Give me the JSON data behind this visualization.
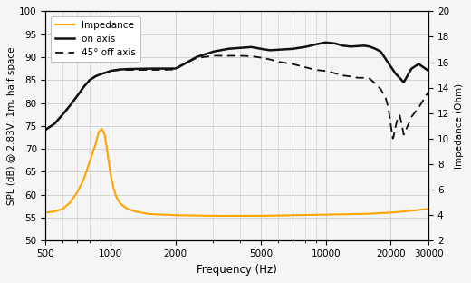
{
  "xlabel": "Frequency (Hz)",
  "ylabel_left": "SPL (dB) @ 2.83V, 1m, half space",
  "ylabel_right": "Impedance (Ohm)",
  "ylim_left": [
    50,
    100
  ],
  "ylim_right": [
    2,
    20
  ],
  "xlim": [
    500,
    30000
  ],
  "background_color": "#f5f5f5",
  "grid_color": "#cccccc",
  "on_axis_color": "#111111",
  "off_axis_color": "#111111",
  "impedance_color": "#FFA500",
  "legend_labels": [
    "Impedance",
    "on axis",
    "45° off axis"
  ],
  "on_axis_pts": [
    [
      500,
      74.2
    ],
    [
      550,
      75.5
    ],
    [
      600,
      77.5
    ],
    [
      650,
      79.5
    ],
    [
      700,
      81.5
    ],
    [
      750,
      83.5
    ],
    [
      800,
      85.0
    ],
    [
      850,
      85.8
    ],
    [
      900,
      86.3
    ],
    [
      950,
      86.6
    ],
    [
      1000,
      87.0
    ],
    [
      1100,
      87.3
    ],
    [
      1200,
      87.4
    ],
    [
      1500,
      87.5
    ],
    [
      1700,
      87.5
    ],
    [
      2000,
      87.5
    ],
    [
      2200,
      88.5
    ],
    [
      2500,
      90.0
    ],
    [
      3000,
      91.2
    ],
    [
      3500,
      91.8
    ],
    [
      4000,
      92.0
    ],
    [
      4500,
      92.2
    ],
    [
      5000,
      91.8
    ],
    [
      5500,
      91.5
    ],
    [
      6000,
      91.6
    ],
    [
      7000,
      91.8
    ],
    [
      8000,
      92.2
    ],
    [
      9000,
      92.8
    ],
    [
      10000,
      93.2
    ],
    [
      11000,
      93.0
    ],
    [
      12000,
      92.5
    ],
    [
      13000,
      92.3
    ],
    [
      14000,
      92.4
    ],
    [
      15000,
      92.5
    ],
    [
      16000,
      92.3
    ],
    [
      17000,
      91.8
    ],
    [
      18000,
      91.2
    ],
    [
      19000,
      89.5
    ],
    [
      20000,
      88.0
    ],
    [
      21000,
      86.5
    ],
    [
      22000,
      85.5
    ],
    [
      23000,
      84.5
    ],
    [
      25000,
      87.5
    ],
    [
      27000,
      88.5
    ],
    [
      30000,
      87.0
    ]
  ],
  "off_axis_pts": [
    [
      500,
      74.2
    ],
    [
      550,
      75.5
    ],
    [
      600,
      77.5
    ],
    [
      650,
      79.5
    ],
    [
      700,
      81.5
    ],
    [
      750,
      83.5
    ],
    [
      800,
      85.0
    ],
    [
      850,
      85.8
    ],
    [
      900,
      86.3
    ],
    [
      950,
      86.6
    ],
    [
      1000,
      87.0
    ],
    [
      1100,
      87.2
    ],
    [
      1200,
      87.2
    ],
    [
      1500,
      87.2
    ],
    [
      1700,
      87.2
    ],
    [
      2000,
      87.3
    ],
    [
      2200,
      88.5
    ],
    [
      2500,
      89.8
    ],
    [
      3000,
      90.3
    ],
    [
      3500,
      90.3
    ],
    [
      4000,
      90.3
    ],
    [
      4500,
      90.2
    ],
    [
      5000,
      89.9
    ],
    [
      5500,
      89.5
    ],
    [
      6000,
      89.0
    ],
    [
      7000,
      88.5
    ],
    [
      8000,
      87.8
    ],
    [
      9000,
      87.2
    ],
    [
      10000,
      87.0
    ],
    [
      11000,
      86.5
    ],
    [
      12000,
      86.0
    ],
    [
      13000,
      85.8
    ],
    [
      14000,
      85.5
    ],
    [
      15000,
      85.5
    ],
    [
      16000,
      85.3
    ],
    [
      17000,
      84.2
    ],
    [
      18000,
      83.0
    ],
    [
      19000,
      81.0
    ],
    [
      19500,
      79.0
    ],
    [
      20000,
      75.5
    ],
    [
      20500,
      72.0
    ],
    [
      21000,
      74.5
    ],
    [
      21500,
      76.5
    ],
    [
      22000,
      77.5
    ],
    [
      22500,
      75.5
    ],
    [
      23000,
      73.0
    ],
    [
      24000,
      75.0
    ],
    [
      25000,
      77.0
    ],
    [
      27000,
      79.0
    ],
    [
      30000,
      82.5
    ]
  ],
  "impedance_pts": [
    [
      500,
      4.2
    ],
    [
      550,
      4.3
    ],
    [
      600,
      4.5
    ],
    [
      650,
      5.0
    ],
    [
      700,
      5.8
    ],
    [
      750,
      6.8
    ],
    [
      800,
      8.2
    ],
    [
      850,
      9.5
    ],
    [
      880,
      10.5
    ],
    [
      910,
      10.8
    ],
    [
      940,
      10.3
    ],
    [
      970,
      8.8
    ],
    [
      1000,
      7.2
    ],
    [
      1030,
      6.2
    ],
    [
      1060,
      5.5
    ],
    [
      1100,
      5.0
    ],
    [
      1150,
      4.7
    ],
    [
      1200,
      4.5
    ],
    [
      1300,
      4.3
    ],
    [
      1500,
      4.1
    ],
    [
      2000,
      4.0
    ],
    [
      3000,
      3.95
    ],
    [
      5000,
      3.95
    ],
    [
      7000,
      4.0
    ],
    [
      10000,
      4.05
    ],
    [
      15000,
      4.1
    ],
    [
      20000,
      4.2
    ],
    [
      25000,
      4.35
    ],
    [
      30000,
      4.5
    ]
  ]
}
